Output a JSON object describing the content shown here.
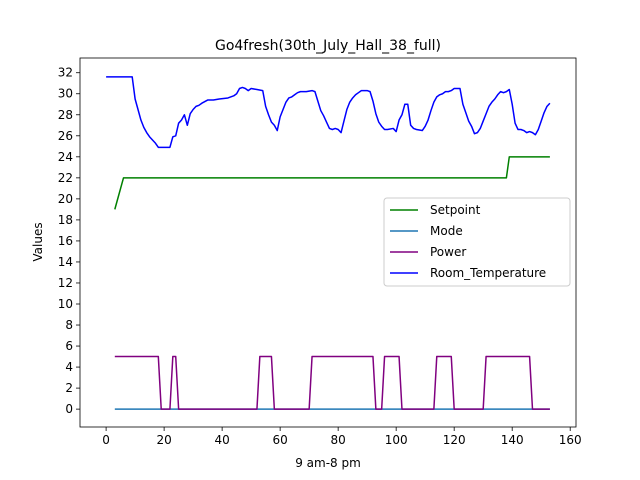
{
  "chart_data": {
    "type": "line",
    "title": "Go4fresh(30th_July_Hall_38_full)",
    "xlabel": "9 am-8 pm",
    "ylabel": "Values",
    "xlim": [
      -9,
      162
    ],
    "ylim": [
      -1.7,
      33.4
    ],
    "xticks": [
      0,
      20,
      40,
      60,
      80,
      100,
      120,
      140,
      160
    ],
    "yticks": [
      0,
      2,
      4,
      6,
      8,
      10,
      12,
      14,
      16,
      18,
      20,
      22,
      24,
      26,
      28,
      30,
      32
    ],
    "grid": false,
    "legend_position": "center-right",
    "series": [
      {
        "name": "Setpoint",
        "color": "#008000",
        "points": [
          [
            3,
            19
          ],
          [
            6,
            22
          ],
          [
            138,
            22
          ],
          [
            139,
            24
          ],
          [
            153,
            24
          ]
        ]
      },
      {
        "name": "Mode",
        "color": "#1f77b4",
        "points": [
          [
            3,
            0
          ],
          [
            153,
            0
          ]
        ]
      },
      {
        "name": "Power",
        "color": "#800080",
        "points": [
          [
            3,
            5
          ],
          [
            18,
            5
          ],
          [
            19,
            0
          ],
          [
            22,
            0
          ],
          [
            23,
            5
          ],
          [
            24,
            5
          ],
          [
            25,
            0
          ],
          [
            52,
            0
          ],
          [
            53,
            5
          ],
          [
            57,
            5
          ],
          [
            58,
            0
          ],
          [
            70,
            0
          ],
          [
            71,
            5
          ],
          [
            92,
            5
          ],
          [
            93,
            0
          ],
          [
            95,
            0
          ],
          [
            96,
            5
          ],
          [
            101,
            5
          ],
          [
            102,
            0
          ],
          [
            113,
            0
          ],
          [
            114,
            5
          ],
          [
            119,
            5
          ],
          [
            120,
            0
          ],
          [
            130,
            0
          ],
          [
            131,
            5
          ],
          [
            146,
            5
          ],
          [
            147,
            0
          ],
          [
            153,
            0
          ]
        ]
      },
      {
        "name": "Room_Temperature",
        "color": "#0000ff",
        "points": [
          [
            0,
            31.6
          ],
          [
            3,
            31.6
          ],
          [
            9,
            31.6
          ],
          [
            10,
            29.5
          ],
          [
            11,
            28.5
          ],
          [
            12,
            27.5
          ],
          [
            13,
            26.8
          ],
          [
            14,
            26.3
          ],
          [
            15,
            25.9
          ],
          [
            16,
            25.6
          ],
          [
            17,
            25.3
          ],
          [
            18,
            24.9
          ],
          [
            19,
            24.9
          ],
          [
            22,
            24.9
          ],
          [
            23,
            25.9
          ],
          [
            24,
            26.0
          ],
          [
            25,
            27.2
          ],
          [
            26,
            27.5
          ],
          [
            27,
            28.0
          ],
          [
            28,
            27.0
          ],
          [
            29,
            28.1
          ],
          [
            30,
            28.5
          ],
          [
            31,
            28.8
          ],
          [
            32,
            28.9
          ],
          [
            33,
            29.1
          ],
          [
            35,
            29.4
          ],
          [
            37,
            29.4
          ],
          [
            39,
            29.5
          ],
          [
            42,
            29.6
          ],
          [
            44,
            29.8
          ],
          [
            45,
            30.0
          ],
          [
            46,
            30.5
          ],
          [
            47,
            30.6
          ],
          [
            48,
            30.5
          ],
          [
            49,
            30.3
          ],
          [
            50,
            30.5
          ],
          [
            52,
            30.4
          ],
          [
            54,
            30.3
          ],
          [
            55,
            28.8
          ],
          [
            56,
            28.0
          ],
          [
            57,
            27.3
          ],
          [
            58,
            27.0
          ],
          [
            59,
            26.5
          ],
          [
            60,
            27.8
          ],
          [
            61,
            28.5
          ],
          [
            62,
            29.2
          ],
          [
            63,
            29.6
          ],
          [
            64,
            29.7
          ],
          [
            65,
            29.9
          ],
          [
            66,
            30.1
          ],
          [
            67,
            30.2
          ],
          [
            68,
            30.2
          ],
          [
            69,
            30.2
          ],
          [
            71,
            30.3
          ],
          [
            72,
            30.2
          ],
          [
            73,
            29.3
          ],
          [
            74,
            28.4
          ],
          [
            75,
            27.9
          ],
          [
            76,
            27.3
          ],
          [
            77,
            26.7
          ],
          [
            78,
            26.6
          ],
          [
            79,
            26.7
          ],
          [
            80,
            26.6
          ],
          [
            81,
            26.3
          ],
          [
            82,
            27.4
          ],
          [
            83,
            28.5
          ],
          [
            84,
            29.2
          ],
          [
            85,
            29.6
          ],
          [
            86,
            29.9
          ],
          [
            87,
            30.1
          ],
          [
            88,
            30.3
          ],
          [
            90,
            30.3
          ],
          [
            91,
            30.2
          ],
          [
            92,
            29.3
          ],
          [
            93,
            28.1
          ],
          [
            94,
            27.3
          ],
          [
            95,
            26.9
          ],
          [
            96,
            26.6
          ],
          [
            97,
            26.6
          ],
          [
            99,
            26.7
          ],
          [
            100,
            26.4
          ],
          [
            101,
            27.5
          ],
          [
            102,
            28.0
          ],
          [
            103,
            29.0
          ],
          [
            104,
            29.0
          ],
          [
            105,
            27.0
          ],
          [
            106,
            26.7
          ],
          [
            107,
            26.6
          ],
          [
            109,
            26.5
          ],
          [
            110,
            26.9
          ],
          [
            111,
            27.5
          ],
          [
            112,
            28.4
          ],
          [
            113,
            29.2
          ],
          [
            114,
            29.7
          ],
          [
            115,
            29.9
          ],
          [
            116,
            30.0
          ],
          [
            117,
            30.2
          ],
          [
            118,
            30.2
          ],
          [
            119,
            30.3
          ],
          [
            120,
            30.5
          ],
          [
            122,
            30.5
          ],
          [
            123,
            29.0
          ],
          [
            124,
            28.2
          ],
          [
            125,
            27.4
          ],
          [
            126,
            26.9
          ],
          [
            127,
            26.2
          ],
          [
            128,
            26.3
          ],
          [
            129,
            26.7
          ],
          [
            130,
            27.4
          ],
          [
            131,
            28.1
          ],
          [
            132,
            28.8
          ],
          [
            133,
            29.2
          ],
          [
            134,
            29.5
          ],
          [
            135,
            29.9
          ],
          [
            136,
            30.2
          ],
          [
            137,
            30.1
          ],
          [
            138,
            30.2
          ],
          [
            139,
            30.4
          ],
          [
            140,
            29.0
          ],
          [
            141,
            27.2
          ],
          [
            142,
            26.6
          ],
          [
            143,
            26.6
          ],
          [
            144,
            26.5
          ],
          [
            145,
            26.3
          ],
          [
            146,
            26.4
          ],
          [
            147,
            26.3
          ],
          [
            148,
            26.1
          ],
          [
            149,
            26.6
          ],
          [
            150,
            27.4
          ],
          [
            151,
            28.2
          ],
          [
            152,
            28.8
          ],
          [
            153,
            29.1
          ]
        ]
      }
    ]
  }
}
